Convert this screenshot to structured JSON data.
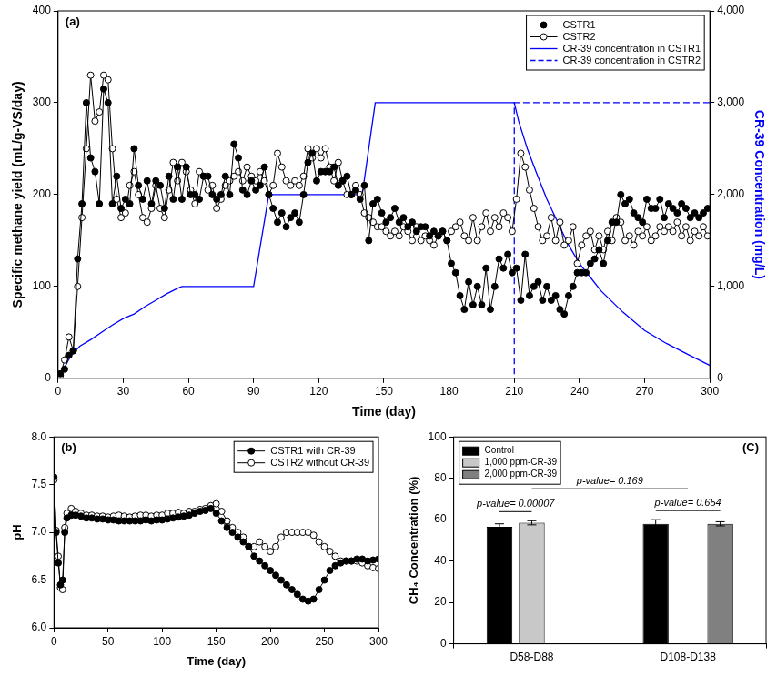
{
  "chart_data": [
    {
      "type": "line",
      "title": "(a)",
      "x_label": "Time (day)",
      "y_label": "Specific methane yield (mL/g-VS/day)",
      "y2_label": "CR-39 Concentration (mg/L)",
      "xlim": [
        0,
        300
      ],
      "xticks": [
        0,
        30,
        60,
        90,
        120,
        150,
        180,
        210,
        240,
        270,
        300
      ],
      "ylim": [
        0,
        400
      ],
      "yticks": [
        0,
        100,
        200,
        300,
        400
      ],
      "y2lim": [
        0,
        4000
      ],
      "y2ticks": [
        0,
        {
          "value": 1000,
          "label": "1,000"
        },
        {
          "value": 2000,
          "label": "2,000"
        },
        {
          "value": 3000,
          "label": "3,000"
        },
        {
          "value": 4000,
          "label": "4,000"
        }
      ],
      "grid": false,
      "legend": "upper right",
      "series": [
        {
          "name": "CSTR1",
          "color": "#000000",
          "marker": "circle",
          "line_style": "solid",
          "x": [
            1,
            3,
            5,
            7,
            9,
            11,
            13,
            15,
            17,
            19,
            21,
            23,
            25,
            27,
            29,
            31,
            33,
            35,
            37,
            39,
            41,
            43,
            45,
            47,
            49,
            51,
            53,
            55,
            57,
            59,
            61,
            63,
            65,
            67,
            69,
            71,
            73,
            75,
            77,
            79,
            81,
            83,
            85,
            87,
            89,
            91,
            93,
            95,
            97,
            99,
            101,
            103,
            105,
            107,
            109,
            111,
            113,
            115,
            117,
            119,
            121,
            123,
            125,
            127,
            129,
            131,
            133,
            135,
            137,
            139,
            141,
            143,
            145,
            147,
            149,
            151,
            153,
            155,
            157,
            159,
            161,
            163,
            165,
            167,
            169,
            171,
            173,
            175,
            177,
            179,
            181,
            183,
            185,
            187,
            189,
            191,
            193,
            195,
            197,
            199,
            201,
            203,
            205,
            207,
            209,
            211,
            213,
            215,
            217,
            219,
            221,
            223,
            225,
            227,
            229,
            231,
            233,
            235,
            237,
            239,
            241,
            243,
            245,
            247,
            249,
            251,
            253,
            255,
            257,
            259,
            261,
            263,
            265,
            267,
            269,
            271,
            273,
            275,
            277,
            279,
            281,
            283,
            285,
            287,
            289,
            291,
            293,
            295,
            297,
            299
          ],
          "values": [
            5,
            10,
            25,
            30,
            130,
            190,
            300,
            240,
            225,
            190,
            315,
            300,
            190,
            220,
            185,
            195,
            190,
            250,
            210,
            195,
            215,
            190,
            215,
            210,
            185,
            220,
            195,
            230,
            195,
            230,
            200,
            200,
            195,
            220,
            220,
            200,
            195,
            200,
            220,
            200,
            255,
            240,
            205,
            200,
            215,
            205,
            210,
            230,
            200,
            185,
            170,
            180,
            165,
            175,
            180,
            170,
            200,
            235,
            245,
            215,
            225,
            225,
            225,
            230,
            210,
            215,
            220,
            200,
            205,
            195,
            210,
            150,
            190,
            195,
            180,
            170,
            175,
            185,
            170,
            175,
            165,
            170,
            160,
            165,
            165,
            155,
            160,
            155,
            160,
            150,
            125,
            115,
            90,
            75,
            105,
            80,
            100,
            80,
            120,
            75,
            100,
            130,
            120,
            135,
            115,
            120,
            85,
            135,
            90,
            100,
            105,
            85,
            100,
            85,
            90,
            75,
            70,
            90,
            100,
            115,
            115,
            115,
            125,
            130,
            140,
            125,
            150,
            170,
            170,
            200,
            190,
            195,
            180,
            175,
            170,
            195,
            185,
            185,
            195,
            175,
            190,
            185,
            180,
            190,
            185,
            175,
            180,
            175,
            180,
            185
          ]
        },
        {
          "name": "CSTR2",
          "color": "#000000",
          "marker": "open_circle",
          "line_style": "solid",
          "x": [
            1,
            3,
            5,
            7,
            9,
            11,
            13,
            15,
            17,
            19,
            21,
            23,
            25,
            27,
            29,
            31,
            33,
            35,
            37,
            39,
            41,
            43,
            45,
            47,
            49,
            51,
            53,
            55,
            57,
            59,
            61,
            63,
            65,
            67,
            69,
            71,
            73,
            75,
            77,
            79,
            81,
            83,
            85,
            87,
            89,
            91,
            93,
            95,
            97,
            99,
            101,
            103,
            105,
            107,
            109,
            111,
            113,
            115,
            117,
            119,
            121,
            123,
            125,
            127,
            129,
            131,
            133,
            135,
            137,
            139,
            141,
            143,
            145,
            147,
            149,
            151,
            153,
            155,
            157,
            159,
            161,
            163,
            165,
            167,
            169,
            171,
            173,
            175,
            177,
            179,
            181,
            183,
            185,
            187,
            189,
            191,
            193,
            195,
            197,
            199,
            201,
            203,
            205,
            207,
            209,
            211,
            213,
            215,
            217,
            219,
            221,
            223,
            225,
            227,
            229,
            231,
            233,
            235,
            237,
            239,
            241,
            243,
            245,
            247,
            249,
            251,
            253,
            255,
            257,
            259,
            261,
            263,
            265,
            267,
            269,
            271,
            273,
            275,
            277,
            279,
            281,
            283,
            285,
            287,
            289,
            291,
            293,
            295,
            297,
            299
          ],
          "values": [
            3,
            20,
            45,
            30,
            100,
            175,
            250,
            330,
            280,
            290,
            330,
            325,
            250,
            195,
            175,
            180,
            210,
            225,
            200,
            175,
            170,
            185,
            210,
            185,
            175,
            205,
            235,
            215,
            235,
            225,
            205,
            190,
            225,
            220,
            205,
            210,
            185,
            195,
            210,
            215,
            220,
            225,
            215,
            230,
            220,
            215,
            225,
            215,
            200,
            210,
            245,
            230,
            215,
            210,
            215,
            210,
            220,
            250,
            240,
            250,
            240,
            250,
            230,
            215,
            235,
            215,
            200,
            200,
            210,
            200,
            180,
            175,
            170,
            165,
            165,
            160,
            155,
            160,
            155,
            165,
            160,
            150,
            165,
            150,
            155,
            150,
            145,
            155,
            160,
            150,
            160,
            165,
            170,
            155,
            150,
            175,
            150,
            165,
            180,
            160,
            175,
            165,
            180,
            175,
            160,
            195,
            245,
            230,
            205,
            185,
            165,
            150,
            155,
            175,
            150,
            170,
            145,
            150,
            165,
            125,
            145,
            155,
            160,
            140,
            155,
            140,
            160,
            150,
            175,
            170,
            150,
            155,
            145,
            160,
            155,
            165,
            150,
            155,
            165,
            160,
            165,
            160,
            170,
            155,
            165,
            150,
            160,
            155,
            165,
            155
          ]
        },
        {
          "name": "CR-39 concentration in CSTR1",
          "color": "#0000ff",
          "marker": "none",
          "line_style": "solid",
          "axis": "y2",
          "x": [
            0,
            3,
            6,
            10,
            15,
            20,
            25,
            30,
            35,
            40,
            45,
            50,
            55,
            57,
            90,
            97,
            140,
            146,
            210,
            212,
            216,
            220,
            225,
            230,
            235,
            240,
            245,
            250,
            260,
            270,
            280,
            290,
            300
          ],
          "values": [
            0,
            120,
            250,
            350,
            420,
            500,
            580,
            650,
            700,
            780,
            850,
            920,
            980,
            1000,
            1000,
            2000,
            2000,
            3000,
            3000,
            2800,
            2500,
            2250,
            1950,
            1700,
            1450,
            1250,
            1100,
            950,
            720,
            520,
            380,
            260,
            140
          ]
        },
        {
          "name": "CR-39 concentration in CSTR2",
          "color": "#0000ff",
          "marker": "none",
          "line_style": "dashed",
          "axis": "y2",
          "x": [
            0,
            210,
            210,
            300
          ],
          "values": [
            0,
            0,
            3000,
            3000
          ]
        }
      ]
    },
    {
      "type": "line",
      "title": "(b)",
      "x_label": "Time (day)",
      "y_label": "pH",
      "xlim": [
        0,
        300
      ],
      "xticks": [
        0,
        50,
        100,
        150,
        200,
        250,
        300
      ],
      "ylim": [
        6,
        8
      ],
      "yticks": [
        {
          "value": 6,
          "label": "6.0"
        },
        6.5,
        {
          "value": 7,
          "label": "7.0"
        },
        7.5,
        {
          "value": 8,
          "label": "8.0"
        }
      ],
      "grid": false,
      "legend": "upper right",
      "x": [
        0,
        2,
        4,
        6,
        8,
        10,
        12,
        16,
        20,
        25,
        30,
        35,
        40,
        45,
        50,
        55,
        60,
        65,
        70,
        75,
        80,
        85,
        90,
        95,
        100,
        105,
        110,
        115,
        120,
        125,
        130,
        135,
        140,
        145,
        150,
        155,
        160,
        165,
        170,
        175,
        180,
        185,
        190,
        195,
        200,
        205,
        210,
        215,
        220,
        225,
        230,
        235,
        240,
        245,
        250,
        255,
        260,
        265,
        270,
        275,
        280,
        285,
        290,
        295,
        300
      ],
      "series": [
        {
          "name": "CSTR1 with CR-39",
          "color": "#000000",
          "marker": "circle",
          "line_style": "solid",
          "values": [
            7.58,
            7.0,
            6.68,
            6.45,
            6.5,
            7.0,
            7.15,
            7.18,
            7.18,
            7.17,
            7.15,
            7.15,
            7.14,
            7.14,
            7.13,
            7.13,
            7.12,
            7.12,
            7.12,
            7.12,
            7.12,
            7.13,
            7.12,
            7.13,
            7.13,
            7.14,
            7.15,
            7.16,
            7.17,
            7.18,
            7.2,
            7.22,
            7.23,
            7.25,
            7.2,
            7.12,
            7.05,
            7.0,
            6.95,
            6.9,
            6.85,
            6.75,
            6.7,
            6.65,
            6.6,
            6.55,
            6.5,
            6.45,
            6.4,
            6.35,
            6.3,
            6.28,
            6.3,
            6.4,
            6.5,
            6.6,
            6.65,
            6.68,
            6.7,
            6.7,
            6.72,
            6.72,
            6.7,
            6.71,
            6.72
          ]
        },
        {
          "name": "CSTR2 without CR-39",
          "color": "#000000",
          "marker": "open_circle",
          "line_style": "solid",
          "values": [
            7.55,
            7.02,
            6.75,
            6.42,
            6.4,
            7.05,
            7.2,
            7.25,
            7.22,
            7.2,
            7.18,
            7.18,
            7.17,
            7.17,
            7.16,
            7.17,
            7.18,
            7.17,
            7.16,
            7.17,
            7.18,
            7.18,
            7.17,
            7.18,
            7.18,
            7.2,
            7.2,
            7.21,
            7.2,
            7.22,
            7.22,
            7.24,
            7.25,
            7.28,
            7.3,
            7.22,
            7.12,
            7.05,
            7.0,
            6.95,
            6.85,
            6.85,
            6.9,
            6.85,
            6.8,
            6.85,
            6.95,
            7.0,
            7.0,
            7.0,
            7.0,
            7.0,
            6.97,
            6.9,
            6.85,
            6.8,
            6.75,
            6.7,
            6.7,
            6.7,
            6.7,
            6.68,
            6.65,
            6.63,
            6.62
          ]
        }
      ]
    },
    {
      "type": "bar",
      "title": "(C)",
      "y_label": "CH₄ Concentration (%)",
      "categories": [
        "D58-D88",
        "D108-D138"
      ],
      "ylim": [
        0,
        100
      ],
      "yticks": [
        0,
        20,
        40,
        60,
        80,
        100
      ],
      "grid": false,
      "legend": "upper left",
      "series": [
        {
          "name": "Control",
          "color": "#000000",
          "values": [
            56.5,
            58
          ],
          "errors": [
            1.5,
            2
          ]
        },
        {
          "name": "1,000 ppm-CR-39",
          "color": "#c8c8c8",
          "values": [
            58.5,
            null
          ],
          "errors": [
            1,
            null
          ]
        },
        {
          "name": "2,000 ppm-CR-39",
          "color": "#808080",
          "values": [
            null,
            58
          ],
          "errors": [
            null,
            1
          ]
        }
      ],
      "annotations": [
        {
          "text": "p-value= 0.00007",
          "category": "D58-D88"
        },
        {
          "text": "p-value= 0.654",
          "category": "D108-D138"
        },
        {
          "text": "p-value= 0.169",
          "categories": [
            "D58-D88",
            "D108-D138"
          ]
        }
      ]
    }
  ]
}
